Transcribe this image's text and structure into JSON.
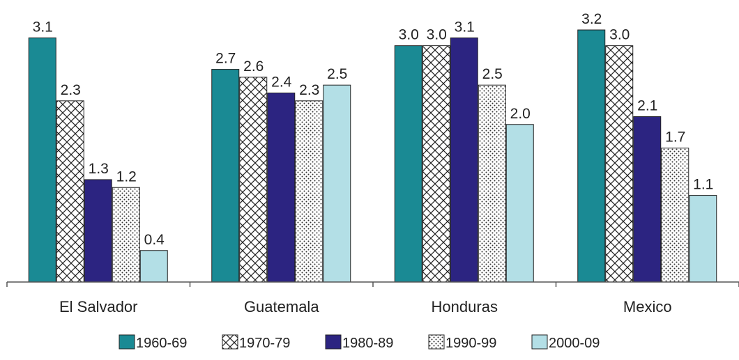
{
  "chart_data": {
    "type": "bar",
    "categories": [
      "El Salvador",
      "Guatemala",
      "Honduras",
      "Mexico"
    ],
    "series": [
      {
        "name": "1960-69",
        "values": [
          3.1,
          2.7,
          3.0,
          3.2
        ],
        "color": "#1a8a94",
        "pattern": "solid"
      },
      {
        "name": "1970-79",
        "values": [
          2.3,
          2.6,
          3.0,
          3.0
        ],
        "color": "#ffffff",
        "pattern": "crosshatch"
      },
      {
        "name": "1980-89",
        "values": [
          1.3,
          2.4,
          3.1,
          2.1
        ],
        "color": "#2c2481",
        "pattern": "solid"
      },
      {
        "name": "1990-99",
        "values": [
          1.2,
          2.3,
          2.5,
          1.7
        ],
        "color": "#ffffff",
        "pattern": "dots"
      },
      {
        "name": "2000-09",
        "values": [
          0.4,
          2.5,
          2.0,
          1.1
        ],
        "color": "#b3dfe6",
        "pattern": "solid"
      }
    ],
    "value_labels": [
      [
        "3.1",
        "2.7",
        "3.0",
        "3.2"
      ],
      [
        "2.3",
        "2.6",
        "3.0",
        "3.0"
      ],
      [
        "1.3",
        "2.4",
        "3.1",
        "2.1"
      ],
      [
        "1.2",
        "2.3",
        "2.5",
        "1.7"
      ],
      [
        "0.4",
        "2.5",
        "2.0",
        "1.1"
      ]
    ],
    "title": "",
    "xlabel": "",
    "ylabel": "",
    "ylim": [
      0,
      3.2
    ],
    "grid": false,
    "legend_position": "bottom"
  }
}
